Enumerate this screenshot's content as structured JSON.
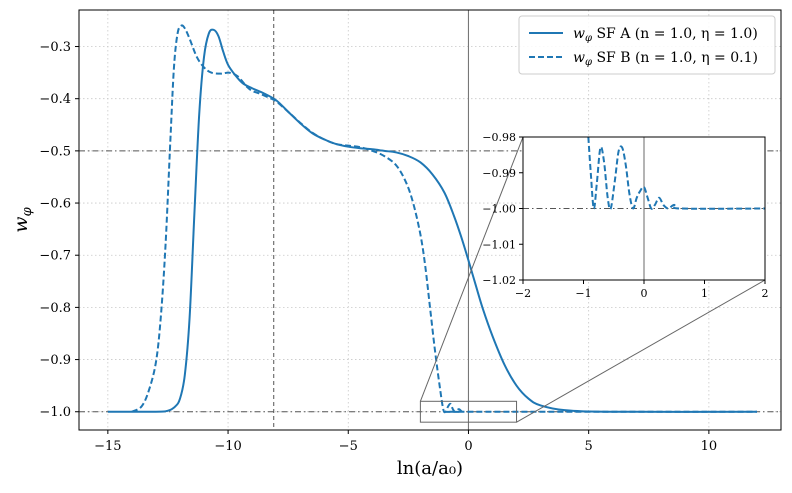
{
  "chart_data": {
    "type": "line",
    "xlabel": "ln(a/a₀)",
    "ylabel": "w",
    "ylabel_sub": "φ",
    "xlim": [
      -16.2,
      13.0
    ],
    "ylim": [
      -1.035,
      -0.23
    ],
    "xticks": [
      -15,
      -10,
      -5,
      0,
      5,
      10
    ],
    "xtick_labels": [
      "−15",
      "−10",
      "−5",
      "0",
      "5",
      "10"
    ],
    "yticks": [
      -1.0,
      -0.9,
      -0.8,
      -0.7,
      -0.6,
      -0.5,
      -0.4,
      -0.3
    ],
    "ytick_labels": [
      "−1.0",
      "−0.9",
      "−0.8",
      "−0.7",
      "−0.6",
      "−0.5",
      "−0.4",
      "−0.3"
    ],
    "grid": true,
    "legend_position": "top-right",
    "reference_lines": {
      "horizontal_dashdot": [
        -0.5,
        -1.0
      ],
      "vertical_solid": [
        0.0
      ],
      "vertical_dashed": [
        -8.1
      ]
    },
    "series": [
      {
        "name": "SF A",
        "legend_params": "(n = 1.0, η = 1.0)",
        "style": "solid",
        "color": "#1f77b4",
        "points": [
          [
            -15.0,
            -1.0
          ],
          [
            -13.0,
            -1.0
          ],
          [
            -12.5,
            -0.998
          ],
          [
            -12.2,
            -0.99
          ],
          [
            -12.0,
            -0.975
          ],
          [
            -11.8,
            -0.93
          ],
          [
            -11.6,
            -0.82
          ],
          [
            -11.4,
            -0.62
          ],
          [
            -11.2,
            -0.43
          ],
          [
            -11.0,
            -0.32
          ],
          [
            -10.8,
            -0.275
          ],
          [
            -10.6,
            -0.268
          ],
          [
            -10.4,
            -0.28
          ],
          [
            -10.2,
            -0.31
          ],
          [
            -10.0,
            -0.335
          ],
          [
            -9.7,
            -0.355
          ],
          [
            -9.4,
            -0.37
          ],
          [
            -9.0,
            -0.38
          ],
          [
            -8.5,
            -0.39
          ],
          [
            -8.0,
            -0.403
          ],
          [
            -7.5,
            -0.425
          ],
          [
            -7.0,
            -0.447
          ],
          [
            -6.5,
            -0.466
          ],
          [
            -6.0,
            -0.478
          ],
          [
            -5.5,
            -0.487
          ],
          [
            -5.0,
            -0.492
          ],
          [
            -4.5,
            -0.495
          ],
          [
            -4.0,
            -0.497
          ],
          [
            -3.5,
            -0.5
          ],
          [
            -3.0,
            -0.503
          ],
          [
            -2.5,
            -0.51
          ],
          [
            -2.0,
            -0.522
          ],
          [
            -1.5,
            -0.545
          ],
          [
            -1.0,
            -0.58
          ],
          [
            -0.6,
            -0.625
          ],
          [
            -0.3,
            -0.665
          ],
          [
            0.0,
            -0.71
          ],
          [
            0.3,
            -0.757
          ],
          [
            0.6,
            -0.803
          ],
          [
            1.0,
            -0.855
          ],
          [
            1.5,
            -0.91
          ],
          [
            2.0,
            -0.95
          ],
          [
            2.5,
            -0.975
          ],
          [
            3.0,
            -0.988
          ],
          [
            4.0,
            -0.997
          ],
          [
            6.0,
            -1.0
          ],
          [
            12.0,
            -1.0
          ]
        ]
      },
      {
        "name": "SF B",
        "legend_params": "(n = 1.0, η = 0.1)",
        "style": "dashed",
        "color": "#1f77b4",
        "points": [
          [
            -14.0,
            -1.0
          ],
          [
            -13.6,
            -0.99
          ],
          [
            -13.3,
            -0.96
          ],
          [
            -13.0,
            -0.905
          ],
          [
            -12.8,
            -0.82
          ],
          [
            -12.6,
            -0.68
          ],
          [
            -12.4,
            -0.48
          ],
          [
            -12.25,
            -0.34
          ],
          [
            -12.1,
            -0.275
          ],
          [
            -11.95,
            -0.26
          ],
          [
            -11.8,
            -0.265
          ],
          [
            -11.6,
            -0.285
          ],
          [
            -11.3,
            -0.32
          ],
          [
            -11.0,
            -0.34
          ],
          [
            -10.7,
            -0.35
          ],
          [
            -10.3,
            -0.352
          ],
          [
            -10.0,
            -0.35
          ],
          [
            -9.8,
            -0.352
          ],
          [
            -9.6,
            -0.357
          ],
          [
            -9.4,
            -0.367
          ],
          [
            -9.2,
            -0.378
          ],
          [
            -9.0,
            -0.385
          ],
          [
            -8.7,
            -0.39
          ],
          [
            -8.3,
            -0.398
          ],
          [
            -8.0,
            -0.405
          ],
          [
            -7.5,
            -0.425
          ],
          [
            -7.0,
            -0.446
          ],
          [
            -6.5,
            -0.465
          ],
          [
            -6.0,
            -0.478
          ],
          [
            -5.5,
            -0.487
          ],
          [
            -5.0,
            -0.49
          ],
          [
            -4.5,
            -0.493
          ],
          [
            -4.0,
            -0.5
          ],
          [
            -3.5,
            -0.51
          ],
          [
            -3.0,
            -0.528
          ],
          [
            -2.6,
            -0.56
          ],
          [
            -2.3,
            -0.6
          ],
          [
            -2.0,
            -0.66
          ],
          [
            -1.8,
            -0.72
          ],
          [
            -1.6,
            -0.8
          ],
          [
            -1.4,
            -0.88
          ],
          [
            -1.2,
            -0.95
          ],
          [
            -1.05,
            -0.995
          ],
          [
            -0.95,
            -1.0
          ],
          [
            -0.85,
            -0.99
          ],
          [
            -0.75,
            -0.985
          ],
          [
            -0.65,
            -0.995
          ],
          [
            -0.55,
            -1.0
          ],
          [
            -0.4,
            -0.995
          ],
          [
            -0.25,
            -1.0
          ],
          [
            0.0,
            -1.0
          ],
          [
            12.0,
            -1.0
          ]
        ]
      }
    ],
    "inset": {
      "xlim": [
        -2,
        2
      ],
      "ylim": [
        -1.02,
        -0.98
      ],
      "xticks": [
        -2,
        -1,
        0,
        1,
        2
      ],
      "xtick_labels": [
        "−2",
        "−1",
        "0",
        "1",
        "2"
      ],
      "yticks": [
        -1.02,
        -1.01,
        -1.0,
        -0.99,
        -0.98
      ],
      "ytick_labels": [
        "−1.02",
        "−1.01",
        "−1.00",
        "−0.99",
        "−0.98"
      ],
      "reference_lines": {
        "horizontal_dashdot": [
          -1.0
        ],
        "vertical_solid": [
          0.0
        ]
      },
      "series_b_points": [
        [
          -0.92,
          -0.98
        ],
        [
          -0.88,
          -0.99
        ],
        [
          -0.83,
          -1.0
        ],
        [
          -0.78,
          -0.993
        ],
        [
          -0.72,
          -0.983
        ],
        [
          -0.66,
          -0.987
        ],
        [
          -0.6,
          -0.997
        ],
        [
          -0.55,
          -1.0
        ],
        [
          -0.48,
          -0.992
        ],
        [
          -0.42,
          -0.984
        ],
        [
          -0.36,
          -0.983
        ],
        [
          -0.3,
          -0.988
        ],
        [
          -0.24,
          -0.996
        ],
        [
          -0.18,
          -1.0
        ],
        [
          -0.12,
          -0.997
        ],
        [
          -0.06,
          -0.995
        ],
        [
          0.0,
          -0.994
        ],
        [
          0.06,
          -0.997
        ],
        [
          0.12,
          -1.0
        ],
        [
          0.18,
          -0.999
        ],
        [
          0.25,
          -0.997
        ],
        [
          0.32,
          -0.999
        ],
        [
          0.4,
          -1.0
        ],
        [
          0.5,
          -0.999
        ],
        [
          0.6,
          -1.0
        ],
        [
          2.0,
          -1.0
        ]
      ],
      "series_a_points": [
        [
          -2.0,
          -0.98
        ],
        [
          -1.95,
          -0.975
        ]
      ]
    }
  }
}
